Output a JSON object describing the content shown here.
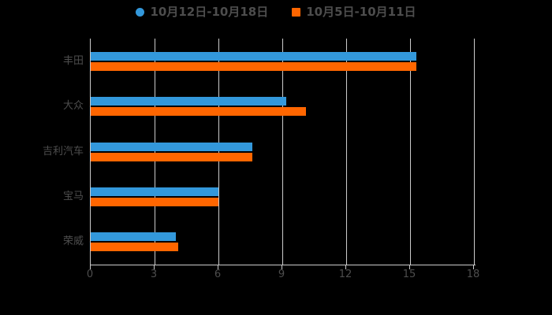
{
  "page": {
    "background": "#000000",
    "text_color": "#4d4d4d",
    "grid_color": "#cccccc"
  },
  "legend": {
    "items": [
      {
        "label": "10月12日-10月18日",
        "color": "#3398db",
        "marker": "circle"
      },
      {
        "label": "10月5日-10月11日",
        "color": "#ff6600",
        "marker": "square"
      }
    ]
  },
  "chart_data": {
    "type": "bar",
    "orientation": "horizontal",
    "title": "",
    "xlabel": "",
    "ylabel": "",
    "categories": [
      "丰田",
      "大众",
      "吉利汽车",
      "宝马",
      "荣威"
    ],
    "series": [
      {
        "name": "10月12日-10月18日",
        "color": "#3398db",
        "values": [
          15.3,
          9.2,
          7.6,
          6.0,
          4.0
        ]
      },
      {
        "name": "10月5日-10月11日",
        "color": "#ff6600",
        "values": [
          15.3,
          10.1,
          7.6,
          6.0,
          4.1
        ]
      }
    ],
    "x_ticks": [
      0,
      3,
      6,
      9,
      12,
      15,
      18
    ],
    "xlim": [
      0,
      18
    ],
    "grid": true,
    "legend_position": "top-center"
  }
}
